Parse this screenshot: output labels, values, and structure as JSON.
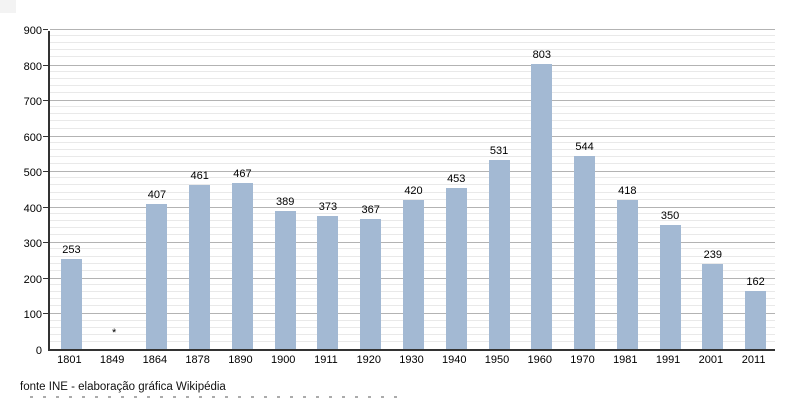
{
  "chart_data": {
    "type": "bar",
    "title": "",
    "categories": [
      "1801",
      "1849",
      "1864",
      "1878",
      "1890",
      "1900",
      "1911",
      "1920",
      "1930",
      "1940",
      "1950",
      "1960",
      "1970",
      "1981",
      "1991",
      "2001",
      "2011"
    ],
    "values": [
      253,
      null,
      407,
      461,
      467,
      389,
      373,
      367,
      420,
      453,
      531,
      803,
      544,
      418,
      350,
      239,
      162
    ],
    "null_marker": "*",
    "xlabel": "",
    "ylabel": "",
    "ylim": [
      0,
      900
    ],
    "y_major_step": 100,
    "y_minor_step": 20,
    "grid": true,
    "legend_position": "none",
    "bar_color": "#a3b9d3",
    "axis_color": "#333333",
    "major_grid_color": "#b3b3b3",
    "minor_grid_color": "#e9e9e9"
  },
  "footer": {
    "source_note": "fonte INE - elaboração gráfica Wikipédia"
  }
}
